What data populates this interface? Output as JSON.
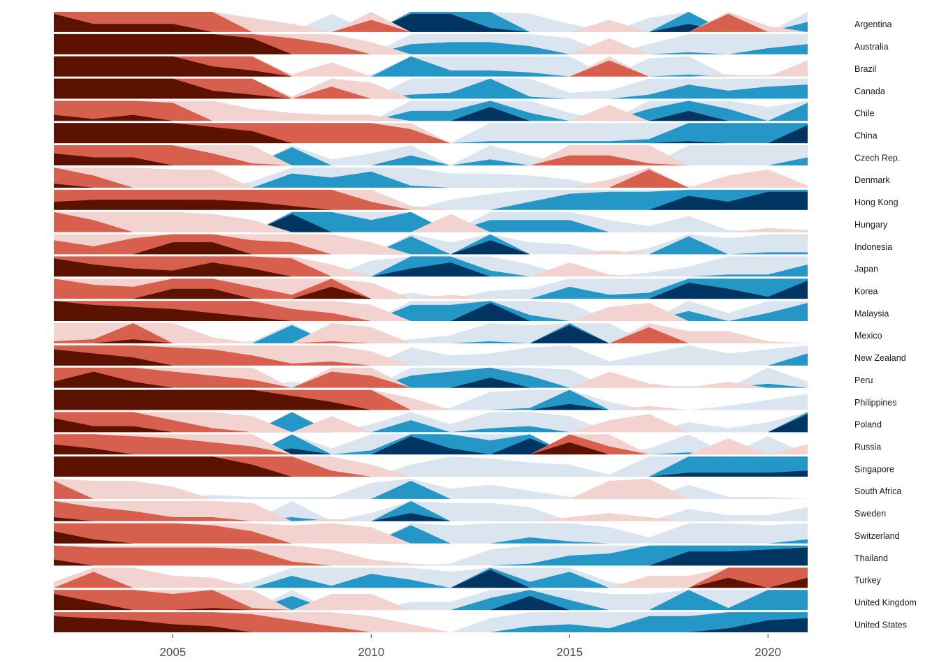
{
  "chart_data": {
    "type": "horizon",
    "xlim": [
      2002,
      2021
    ],
    "x_ticks": [
      "2005",
      "2010",
      "2015",
      "2020"
    ],
    "x_tick_values": [
      2005,
      2010,
      2015,
      2020
    ],
    "legend": "none",
    "grid": false,
    "band_colors": {
      "neg3": "#5c1200",
      "neg2": "#d6604d",
      "neg1": "#f2d3cf",
      "pos1": "#dae5ef",
      "pos2": "#2597c7",
      "pos3": "#003461"
    },
    "x": [
      2002,
      2003,
      2004,
      2005,
      2006,
      2007,
      2008,
      2009,
      2010,
      2011,
      2012,
      2013,
      2014,
      2015,
      2016,
      2017,
      2018,
      2019,
      2020,
      2021
    ],
    "series": [
      {
        "name": "Argentina",
        "values": [
          -2.9,
          -2.4,
          -2.4,
          -2.4,
          -2.0,
          -0.7,
          -0.4,
          0.9,
          -1.6,
          2.9,
          2.9,
          2.2,
          0.9,
          0.4,
          -0.6,
          0.7,
          2.4,
          -1.9,
          -0.3,
          1.5
        ]
      },
      {
        "name": "Australia",
        "values": [
          -3,
          -3,
          -3,
          -3,
          -3,
          -2.8,
          -1.8,
          -1.5,
          -0.6,
          1.5,
          1.6,
          1.6,
          1.4,
          0.8,
          -0.8,
          0.5,
          1.1,
          1.0,
          1.3,
          1.5
        ]
      },
      {
        "name": "Brazil",
        "values": [
          -3,
          -3,
          -3,
          -3,
          -2.5,
          -2.3,
          -0.1,
          -0.7,
          0.1,
          2.0,
          1.3,
          1.3,
          1.2,
          1.0,
          -1.8,
          0.9,
          1.1,
          -0.1,
          0.1,
          -0.8
        ]
      },
      {
        "name": "Canada",
        "values": [
          -3,
          -3,
          -3,
          -3,
          -2.4,
          -2.2,
          -0.1,
          -1.6,
          -0.8,
          1.2,
          1.3,
          2.0,
          1.1,
          0.3,
          0.4,
          1.2,
          1.7,
          1.4,
          1.6,
          1.7
        ]
      },
      {
        "name": "Chile",
        "values": [
          -2.3,
          -2.1,
          -2.3,
          -1.9,
          -1.0,
          -0.6,
          -0.4,
          -0.3,
          -0.3,
          1.5,
          1.5,
          2.7,
          1.4,
          0.4,
          -0.8,
          1.6,
          2.5,
          1.6,
          0.7,
          1.9
        ]
      },
      {
        "name": "China",
        "values": [
          -3,
          -3,
          -3,
          -3,
          -2.8,
          -2.6,
          -2.0,
          -2.0,
          -2.0,
          -1.7,
          0.0,
          1.1,
          1.1,
          1.1,
          1.1,
          1.2,
          2.1,
          2.0,
          2.0,
          2.9
        ]
      },
      {
        "name": "Czech Rep.",
        "values": [
          -2.6,
          -2.4,
          -2.4,
          -2.0,
          -1.6,
          -1.1,
          1.9,
          0.3,
          0.6,
          1.5,
          0.0,
          1.3,
          0.5,
          -1.5,
          -1.5,
          -1.1,
          1.0,
          1.0,
          1.0,
          1.4
        ]
      },
      {
        "name": "Denmark",
        "values": [
          -2.2,
          -1.6,
          -1.0,
          -0.9,
          -0.9,
          0.3,
          1.7,
          1.5,
          1.8,
          1.1,
          0.7,
          0.7,
          0.6,
          0.4,
          -0.4,
          -1.9,
          0.1,
          -0.6,
          -0.9,
          -0.1
        ]
      },
      {
        "name": "Hong Kong",
        "values": [
          -2.4,
          -2.5,
          -2.5,
          -2.5,
          -2.5,
          -2.4,
          -2.2,
          -2.0,
          -1.4,
          -0.2,
          0.5,
          0.8,
          1.4,
          1.8,
          1.9,
          1.9,
          2.7,
          2.4,
          2.9,
          2.9
        ]
      },
      {
        "name": "Hungary",
        "values": [
          -2.0,
          -1.6,
          -1.0,
          -1.0,
          -0.9,
          -0.6,
          2.9,
          2.0,
          1.6,
          2.0,
          -0.9,
          1.6,
          1.6,
          1.6,
          0.6,
          0.3,
          0.8,
          0.1,
          -0.2,
          -0.1
        ]
      },
      {
        "name": "Indonesia",
        "values": [
          -1.7,
          -1.4,
          -1.8,
          -2.6,
          -2.6,
          -1.7,
          -1.6,
          -1.0,
          -0.6,
          1.9,
          0.6,
          2.7,
          0.6,
          0.5,
          -0.2,
          0.3,
          1.9,
          0.8,
          1.1,
          1.1
        ]
      },
      {
        "name": "Japan",
        "values": [
          -2.9,
          -2.6,
          -2.4,
          -2.3,
          -2.7,
          -2.4,
          -1.9,
          -0.6,
          0.8,
          2.4,
          2.7,
          1.3,
          0.6,
          -0.7,
          -0.1,
          0.2,
          0.5,
          1.1,
          1.1,
          1.6
        ]
      },
      {
        "name": "Korea",
        "values": [
          -2.0,
          -1.7,
          -1.6,
          -2.5,
          -2.5,
          -1.6,
          -1.2,
          -2.6,
          -0.8,
          0.3,
          -0.2,
          0.4,
          0.5,
          1.6,
          1.2,
          1.3,
          2.8,
          2.5,
          2.1,
          2.9
        ]
      },
      {
        "name": "Malaysia",
        "values": [
          -3,
          -2.8,
          -2.7,
          -2.6,
          -2.4,
          -2.2,
          -1.6,
          -1.4,
          -0.8,
          1.8,
          1.8,
          2.9,
          1.3,
          0.9,
          -0.7,
          -0.9,
          1.5,
          0.4,
          1.4,
          1.9
        ]
      },
      {
        "name": "Mexico",
        "values": [
          -1.1,
          -1.2,
          -2.2,
          -1.0,
          -0.3,
          0.1,
          1.9,
          -1.1,
          -0.8,
          0.2,
          0.4,
          1.1,
          0.9,
          2.9,
          1.0,
          -1.8,
          -0.6,
          -0.6,
          -0.1,
          0.0
        ]
      },
      {
        "name": "New Zealand",
        "values": [
          -2.8,
          -2.6,
          -2.4,
          -1.9,
          -1.8,
          -1.5,
          -1.1,
          -1.2,
          -0.7,
          0.9,
          0.5,
          0.6,
          0.9,
          1.0,
          0.2,
          0.6,
          1.0,
          0.6,
          0.8,
          1.6
        ]
      },
      {
        "name": "Peru",
        "values": [
          -2.3,
          -2.8,
          -2.3,
          -1.8,
          -1.6,
          -1.4,
          0.3,
          -1.8,
          -1.6,
          1.6,
          1.8,
          2.5,
          1.6,
          0.9,
          -0.8,
          -0.2,
          0.1,
          -0.3,
          1.2,
          0.3
        ]
      },
      {
        "name": "Philippines",
        "values": [
          -3,
          -3,
          -3,
          -3,
          -3,
          -3,
          -2.7,
          -2.4,
          -2.0,
          -0.6,
          0.1,
          0.9,
          1.1,
          2.3,
          0.4,
          -0.2,
          0.0,
          0.2,
          0.5,
          0.8
        ]
      },
      {
        "name": "Poland",
        "values": [
          -2.7,
          -2.3,
          -2.3,
          -1.6,
          -1.2,
          -0.8,
          2.0,
          -0.8,
          0.4,
          1.6,
          0.4,
          1.2,
          1.3,
          0.8,
          -0.6,
          -0.9,
          0.5,
          0.2,
          0.5,
          2.9
        ]
      },
      {
        "name": "Russia",
        "values": [
          -2.5,
          -2.3,
          -1.9,
          -1.8,
          -1.6,
          -1.4,
          2.3,
          0.3,
          1.2,
          2.9,
          2.3,
          1.7,
          2.8,
          -2.6,
          -1.4,
          0.3,
          1.1,
          -0.8,
          0.9,
          -0.5
        ]
      },
      {
        "name": "Singapore",
        "values": [
          -3,
          -3,
          -3,
          -3,
          -3,
          -2.6,
          -2.0,
          -1.3,
          -0.6,
          0.6,
          1.0,
          0.9,
          0.7,
          0.6,
          0.1,
          1.0,
          2.2,
          2.2,
          2.2,
          2.3
        ]
      },
      {
        "name": "South Africa",
        "values": [
          -1.9,
          -0.9,
          -0.9,
          -0.6,
          0.2,
          0.1,
          0.1,
          0.1,
          0.8,
          1.9,
          0.5,
          0.7,
          0.4,
          0.1,
          -0.9,
          -1.0,
          0.7,
          0.1,
          0.1,
          0.0
        ]
      },
      {
        "name": "Sweden",
        "values": [
          -2.2,
          -1.7,
          -1.5,
          -1.2,
          -1.2,
          -0.9,
          1.2,
          -0.1,
          0.4,
          2.4,
          0.9,
          0.9,
          0.7,
          -0.2,
          -0.4,
          -0.2,
          0.6,
          0.3,
          0.3,
          0.7
        ]
      },
      {
        "name": "Switzerland",
        "values": [
          -2.6,
          -2.2,
          -2.0,
          -2.0,
          -1.9,
          -1.6,
          -0.9,
          -1.0,
          -0.8,
          1.9,
          0.9,
          1.0,
          1.3,
          1.1,
          0.8,
          0.3,
          1.0,
          1.0,
          0.9,
          1.2
        ]
      },
      {
        "name": "Thailand",
        "values": [
          -2.3,
          -1.9,
          -1.9,
          -1.9,
          -1.9,
          -1.8,
          -1.2,
          -0.8,
          -0.3,
          -0.1,
          0.1,
          0.8,
          1.1,
          1.5,
          1.6,
          2.0,
          2.7,
          2.7,
          2.8,
          2.9
        ]
      },
      {
        "name": "Turkey",
        "values": [
          -0.3,
          -1.8,
          -1.0,
          -0.6,
          -0.5,
          0.3,
          1.6,
          1.1,
          1.7,
          1.4,
          0.8,
          2.9,
          1.3,
          1.8,
          0.3,
          -0.6,
          -0.6,
          -2.5,
          -2.0,
          -2.5
        ]
      },
      {
        "name": "United Kingdom",
        "values": [
          -2.8,
          -2.4,
          -2.0,
          -1.8,
          -2.1,
          -1.1,
          1.7,
          -0.8,
          -0.8,
          0.4,
          0.4,
          1.6,
          2.7,
          1.5,
          0.8,
          0.8,
          2.0,
          1.1,
          2.0,
          2.0
        ]
      },
      {
        "name": "United States",
        "values": [
          -2.8,
          -2.7,
          -2.6,
          -2.4,
          -2.3,
          -1.9,
          -1.6,
          -1.3,
          -0.8,
          -0.4,
          0.0,
          0.7,
          1.3,
          1.4,
          1.2,
          1.8,
          1.8,
          2.2,
          2.6,
          2.7
        ]
      }
    ]
  }
}
